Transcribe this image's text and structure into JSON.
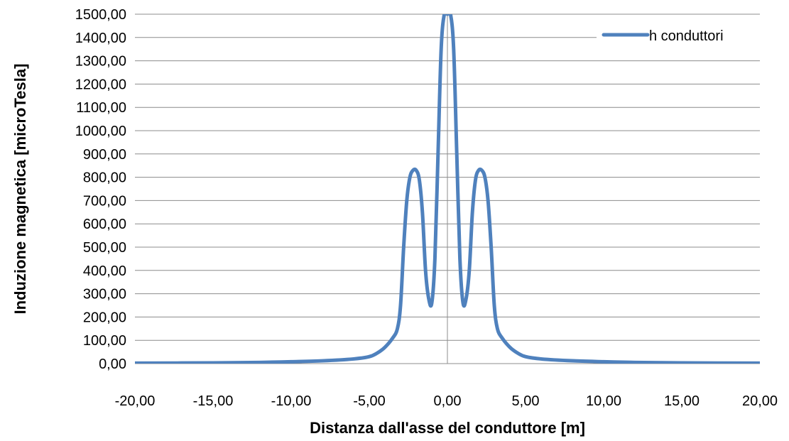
{
  "chart_data": {
    "type": "line",
    "xlabel": "Distanza dall'asse del conduttore [m]",
    "ylabel": "Induzione magnetica [microTesla]",
    "xlim": [
      -20,
      20
    ],
    "ylim": [
      0,
      1500
    ],
    "xticks": [
      -20,
      -15,
      -10,
      -5,
      0,
      5,
      10,
      15,
      20
    ],
    "yticks": [
      0,
      100,
      200,
      300,
      400,
      500,
      600,
      700,
      800,
      900,
      1000,
      1100,
      1200,
      1300,
      1400,
      1500
    ],
    "xtick_labels": [
      "-20,00",
      "-15,00",
      "-10,00",
      "-5,00",
      "0,00",
      "5,00",
      "10,00",
      "15,00",
      "20,00"
    ],
    "ytick_labels": [
      "0,00",
      "100,00",
      "200,00",
      "300,00",
      "400,00",
      "500,00",
      "600,00",
      "700,00",
      "800,00",
      "900,00",
      "1000,00",
      "1100,00",
      "1200,00",
      "1300,00",
      "1400,00",
      "1500,00"
    ],
    "grid": {
      "horizontal": true,
      "vertical": false
    },
    "legend_position": "top-right",
    "series": [
      {
        "name": "h conduttori",
        "color": "#4F81BD",
        "x": [
          -20,
          -15,
          -12,
          -10,
          -8,
          -6,
          -5,
          -4.5,
          -4,
          -3.5,
          -3.2,
          -3,
          -2.8,
          -2.6,
          -2.4,
          -2.2,
          -2,
          -1.8,
          -1.6,
          -1.4,
          -1.2,
          -1,
          -0.8,
          -0.6,
          -0.4,
          -0.2,
          0,
          0.2,
          0.4,
          0.6,
          0.8,
          1,
          1.2,
          1.4,
          1.6,
          1.8,
          2,
          2.2,
          2.4,
          2.6,
          2.8,
          3,
          3.2,
          3.5,
          4,
          4.5,
          5,
          6,
          8,
          10,
          12,
          15,
          20
        ],
        "y": [
          2,
          3,
          5,
          8,
          12,
          20,
          30,
          45,
          70,
          110,
          150,
          250,
          500,
          700,
          800,
          830,
          830,
          790,
          650,
          400,
          280,
          260,
          450,
          900,
          1350,
          1500,
          1500,
          1500,
          1350,
          900,
          450,
          260,
          280,
          400,
          650,
          790,
          830,
          830,
          800,
          700,
          500,
          250,
          150,
          110,
          70,
          45,
          30,
          20,
          12,
          8,
          5,
          3,
          2
        ]
      }
    ]
  }
}
